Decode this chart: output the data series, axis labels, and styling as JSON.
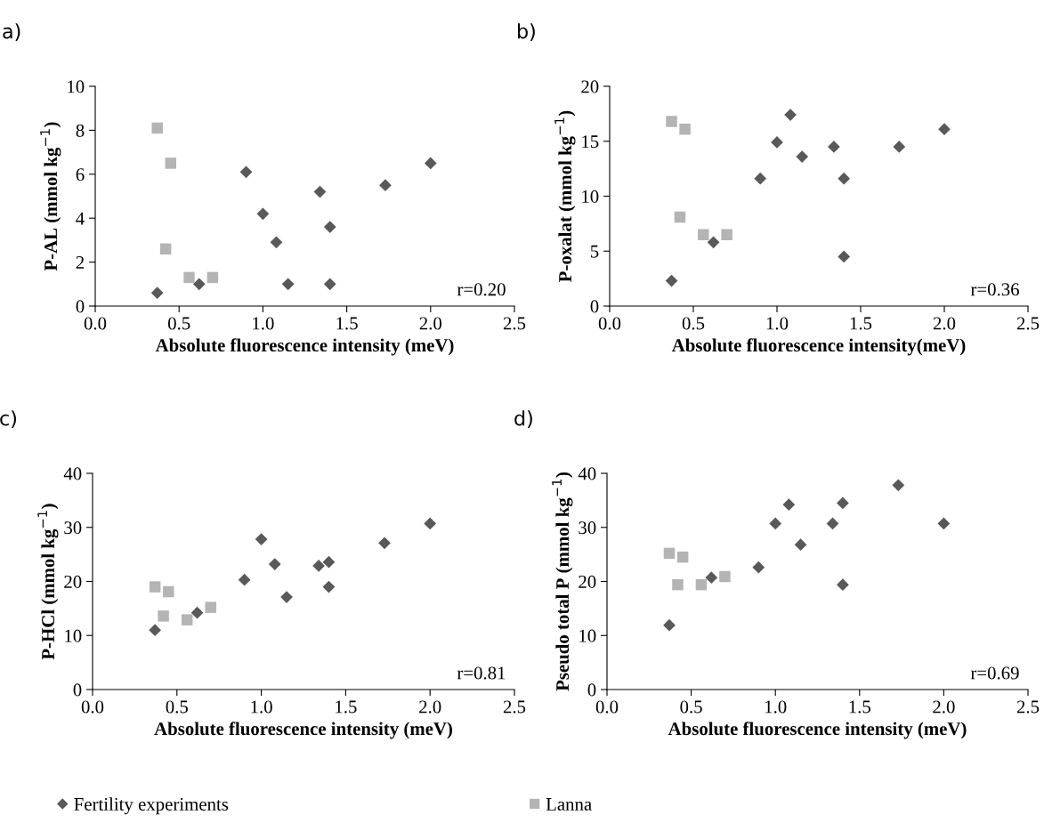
{
  "chart_data": [
    {
      "type": "scatter",
      "title": "a)",
      "xlabel": "Absolute fluorescence intensity (meV)",
      "ylabel": "P-AL (mmol kg$^{−1}$)",
      "annotations": [
        "r=0.20"
      ],
      "xlim": [
        0,
        2.5
      ],
      "xticks": [
        {
          "value": 0,
          "label": "0.0"
        },
        {
          "value": 0.5,
          "label": "0.5"
        },
        {
          "value": 1,
          "label": "1.0"
        },
        {
          "value": 1.5,
          "label": "1.5"
        },
        {
          "value": 2,
          "label": "2.0"
        },
        {
          "value": 2.5,
          "label": "2.5"
        }
      ],
      "ylim": [
        0,
        10
      ],
      "yticks": [
        0,
        2,
        4,
        6,
        8,
        10
      ],
      "grid": false,
      "legend": "bottom",
      "series": [
        {
          "name": "Fertility experiments",
          "color": "#595959",
          "marker": "diamond",
          "x": [
            0.37,
            0.62,
            0.9,
            1.0,
            1.08,
            1.15,
            1.34,
            1.4,
            1.4,
            1.73,
            2.0
          ],
          "values": [
            0.6,
            1.0,
            6.1,
            4.2,
            2.9,
            1.0,
            5.2,
            3.6,
            1.0,
            5.5,
            6.5
          ]
        },
        {
          "name": "Lanna",
          "color": "#b4b4b4",
          "marker": "square",
          "x": [
            0.37,
            0.45,
            0.42,
            0.56,
            0.7
          ],
          "values": [
            8.1,
            6.5,
            2.6,
            1.3,
            1.3
          ]
        }
      ]
    },
    {
      "type": "scatter",
      "title": "b)",
      "xlabel": "Absolute fluorescence intensity(meV)",
      "ylabel": "P-oxalat (mmol kg$^{−1}$)",
      "annotations": [
        "r=0.36"
      ],
      "xlim": [
        0,
        2.5
      ],
      "xticks": [
        {
          "value": 0,
          "label": "0.0"
        },
        {
          "value": 0.5,
          "label": "0.5"
        },
        {
          "value": 1,
          "label": "1.0"
        },
        {
          "value": 1.5,
          "label": "1.5"
        },
        {
          "value": 2,
          "label": "2.0"
        },
        {
          "value": 2.5,
          "label": "2.5"
        }
      ],
      "ylim": [
        0,
        20
      ],
      "yticks": [
        0,
        5,
        10,
        15,
        20
      ],
      "grid": false,
      "series": [
        {
          "color": "#595959",
          "marker": "diamond",
          "x": [
            0.37,
            0.62,
            0.9,
            1.0,
            1.08,
            1.15,
            1.34,
            1.4,
            1.4,
            1.73,
            2.0
          ],
          "values": [
            2.3,
            5.8,
            11.6,
            14.9,
            17.4,
            13.6,
            14.5,
            11.6,
            4.5,
            14.5,
            16.1
          ]
        },
        {
          "color": "#b4b4b4",
          "marker": "square",
          "x": [
            0.37,
            0.45,
            0.42,
            0.56,
            0.7
          ],
          "values": [
            16.8,
            16.1,
            8.1,
            6.5,
            6.5
          ]
        }
      ]
    },
    {
      "type": "scatter",
      "title": "c)",
      "xlabel": "Absolute fluorescence intensity (meV)",
      "ylabel": "P-HCl (mmol kg$^{−1}$)",
      "annotations": [
        "r=0.81"
      ],
      "xlim": [
        0,
        2.5
      ],
      "xticks": [
        {
          "value": 0,
          "label": "0.0"
        },
        {
          "value": 0.5,
          "label": "0.5"
        },
        {
          "value": 1,
          "label": "1.0"
        },
        {
          "value": 1.5,
          "label": "1.5"
        },
        {
          "value": 2,
          "label": "2.0"
        },
        {
          "value": 2.5,
          "label": "2.5"
        }
      ],
      "ylim": [
        0,
        40
      ],
      "yticks": [
        0,
        10,
        20,
        30,
        40
      ],
      "grid": false,
      "series": [
        {
          "color": "#595959",
          "marker": "diamond",
          "x": [
            0.37,
            0.62,
            0.9,
            1.0,
            1.08,
            1.15,
            1.34,
            1.4,
            1.4,
            1.73,
            2.0
          ],
          "values": [
            11.0,
            14.2,
            20.3,
            27.8,
            23.2,
            17.1,
            22.9,
            23.6,
            19.0,
            27.1,
            30.7
          ]
        },
        {
          "color": "#b4b4b4",
          "marker": "square",
          "x": [
            0.37,
            0.45,
            0.42,
            0.56,
            0.7
          ],
          "values": [
            19.0,
            18.1,
            13.6,
            12.9,
            15.2
          ]
        }
      ]
    },
    {
      "type": "scatter",
      "title": "d)",
      "xlabel": "Absolute fluorescence intensity (meV)",
      "ylabel": "Pseudo total P (mmol kg$^{−1}$)",
      "annotations": [
        "r=0.69"
      ],
      "xlim": [
        0,
        2.5
      ],
      "xticks": [
        {
          "value": 0,
          "label": "0.0"
        },
        {
          "value": 0.5,
          "label": "0.5"
        },
        {
          "value": 1,
          "label": "1.0"
        },
        {
          "value": 1.5,
          "label": "1.5"
        },
        {
          "value": 2,
          "label": "2.0"
        },
        {
          "value": 2.5,
          "label": "2.5"
        }
      ],
      "ylim": [
        0,
        40
      ],
      "yticks": [
        0,
        10,
        20,
        30,
        40
      ],
      "grid": false,
      "series": [
        {
          "color": "#595959",
          "marker": "diamond",
          "x": [
            0.37,
            0.62,
            0.9,
            1.0,
            1.08,
            1.15,
            1.34,
            1.4,
            1.4,
            1.73,
            2.0
          ],
          "values": [
            11.9,
            20.7,
            22.6,
            30.7,
            34.2,
            26.8,
            30.7,
            34.5,
            19.4,
            37.8,
            30.7
          ]
        },
        {
          "color": "#b4b4b4",
          "marker": "square",
          "x": [
            0.37,
            0.45,
            0.42,
            0.56,
            0.7
          ],
          "values": [
            25.2,
            24.5,
            19.4,
            19.4,
            20.9
          ]
        }
      ]
    }
  ]
}
